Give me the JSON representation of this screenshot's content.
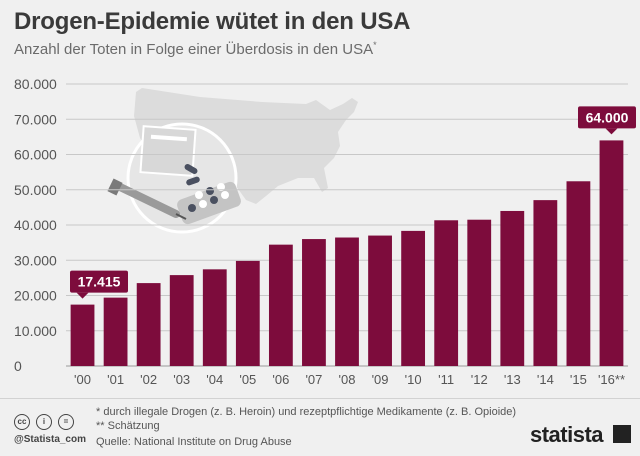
{
  "header": {
    "title": "Drogen-Epidemie wütet in den USA",
    "subtitle": "Anzahl der Toten in Folge einer Überdosis in den USA",
    "subtitle_mark": "*"
  },
  "chart_data": {
    "type": "bar",
    "categories": [
      "'00",
      "'01",
      "'02",
      "'03",
      "'04",
      "'05",
      "'06",
      "'07",
      "'08",
      "'09",
      "'10",
      "'11",
      "'12",
      "'13",
      "'14",
      "'15",
      "'16**"
    ],
    "values": [
      17415,
      19394,
      23518,
      25785,
      27424,
      29813,
      34425,
      36010,
      36450,
      37004,
      38329,
      41340,
      41502,
      43982,
      47055,
      52404,
      64000
    ],
    "y_ticks": [
      "0",
      "10.000",
      "20.000",
      "30.000",
      "40.000",
      "50.000",
      "60.000",
      "70.000",
      "80.000"
    ],
    "ylim": [
      0,
      80000
    ],
    "grid": true,
    "bar_color": "#7d0c3c",
    "callouts": [
      {
        "index": 0,
        "label": "17.415"
      },
      {
        "index": 16,
        "label": "64.000"
      }
    ]
  },
  "footer": {
    "note_1": "*   durch illegale Drogen (z. B. Heroin) und rezeptpflichtige Medikamente (z. B. Opioide)",
    "note_2": "** Schätzung",
    "source": "Quelle: National Institute on Drug Abuse",
    "handle": "@Statista_com",
    "brand": "statista",
    "icons": [
      "cc-icon",
      "by-icon",
      "nd-icon",
      "usa-map-icon",
      "pills-syringe-icon"
    ]
  }
}
